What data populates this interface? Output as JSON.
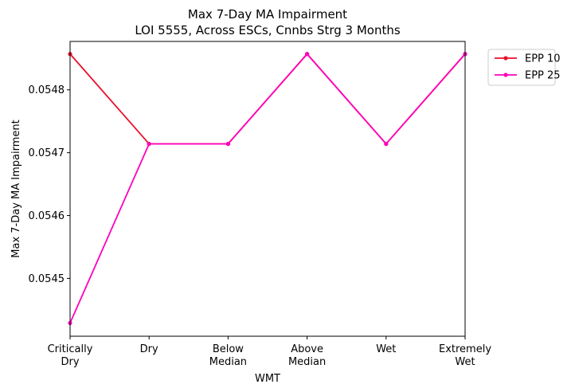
{
  "chart_data": {
    "type": "line",
    "title_lines": [
      "Max 7-Day MA Impairment",
      "LOI 5555, Across ESCs, Cnnbs Strg 3 Months"
    ],
    "xlabel": "WMT",
    "ylabel": "Max 7-Day MA Impairment",
    "categories": [
      [
        "Critically",
        "Dry"
      ],
      [
        "Dry"
      ],
      [
        "Below",
        "Median"
      ],
      [
        "Above",
        "Median"
      ],
      [
        "Wet"
      ],
      [
        "Extremely",
        "Wet"
      ]
    ],
    "yticks": [
      0.0545,
      0.0546,
      0.0547,
      0.0548
    ],
    "ytick_labels": [
      "0.0545",
      "0.0546",
      "0.0547",
      "0.0548"
    ],
    "ylim": [
      0.054408,
      0.054877
    ],
    "grid": false,
    "legend_position": "outside-top-right",
    "series": [
      {
        "name": "EPP 10",
        "color": "#e8112d",
        "values": [
          0.054857,
          0.054714,
          0.054714,
          0.054857,
          0.054714,
          0.054857
        ]
      },
      {
        "name": "EPP 25",
        "color": "#ff00bb",
        "values": [
          0.054429,
          0.054714,
          0.054714,
          0.054857,
          0.054714,
          0.054857
        ]
      }
    ]
  }
}
